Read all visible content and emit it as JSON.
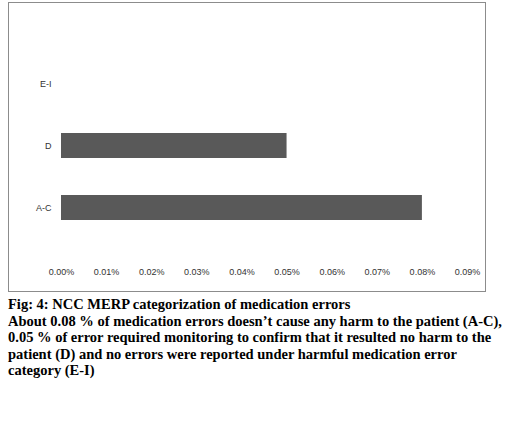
{
  "chart_data": {
    "type": "bar",
    "orientation": "horizontal",
    "title": "Fig: 4: NCC MERP categorization of medication errors",
    "caption": "About 0.08 % of medication errors doesn’t cause any harm to the patient (A-C), 0.05 % of error required monitoring to confirm that it resulted no harm to the patient (D) and no errors were reported under harmful medication error category (E-I)",
    "categories": [
      "E-I",
      "D",
      "A-C"
    ],
    "values": [
      0,
      0.05,
      0.08
    ],
    "color": "#595959",
    "xlim": [
      0,
      0.09
    ],
    "xticks": [
      {
        "value": 0,
        "label": "0.00%"
      },
      {
        "value": 0.01,
        "label": "0.01%"
      },
      {
        "value": 0.02,
        "label": "0.02%"
      },
      {
        "value": 0.03,
        "label": "0.03%"
      },
      {
        "value": 0.04,
        "label": "0.04%"
      },
      {
        "value": 0.05,
        "label": "0.05%"
      },
      {
        "value": 0.06,
        "label": "0.06%"
      },
      {
        "value": 0.07,
        "label": "0.07%"
      },
      {
        "value": 0.08,
        "label": "0.08%"
      },
      {
        "value": 0.09,
        "label": "0.09%"
      }
    ],
    "grid": false
  }
}
